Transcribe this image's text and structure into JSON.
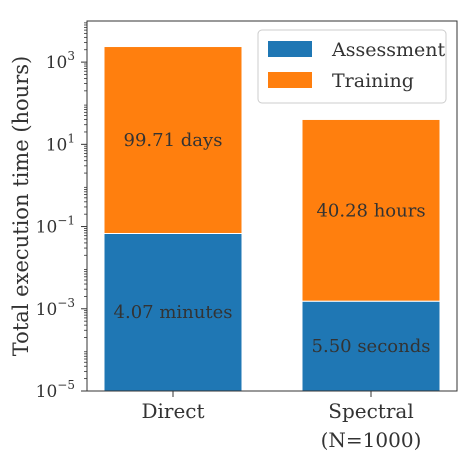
{
  "chart_data": {
    "type": "bar",
    "stacked": true,
    "scale": "log",
    "categories": [
      "Direct",
      "Spectral\n(N=1000)"
    ],
    "series": [
      {
        "name": "Assessment",
        "color": "#1f77b4",
        "values": [
          0.0678,
          0.00153
        ],
        "labels": [
          "4.07 minutes",
          "5.50 seconds"
        ]
      },
      {
        "name": "Training",
        "color": "#ff7f0e",
        "values": [
          2393.0,
          40.28
        ],
        "labels": [
          "99.71 days",
          "40.28 hours"
        ]
      }
    ],
    "ylabel": "Total execution time (hours)",
    "ylim": [
      1e-05,
      10000
    ],
    "yticks": [
      {
        "value": 1e-05,
        "base": "10",
        "exp": "−5"
      },
      {
        "value": 0.001,
        "base": "10",
        "exp": "−3"
      },
      {
        "value": 0.1,
        "base": "10",
        "exp": "−1"
      },
      {
        "value": 10,
        "base": "10",
        "exp": "1"
      },
      {
        "value": 1000,
        "base": "10",
        "exp": "3"
      }
    ],
    "legend_placement": "top-right",
    "grid": false
  }
}
